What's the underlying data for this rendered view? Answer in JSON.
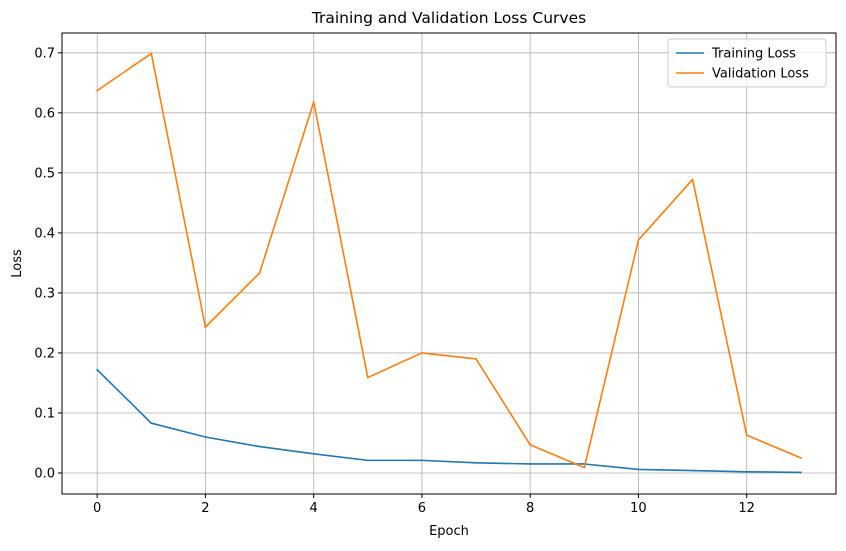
{
  "chart_data": {
    "type": "line",
    "title": "Training and Validation Loss Curves",
    "xlabel": "Epoch",
    "ylabel": "Loss",
    "xlim": [
      -0.65,
      13.65
    ],
    "ylim": [
      -0.035,
      0.733
    ],
    "xticks": [
      0,
      2,
      4,
      6,
      8,
      10,
      12
    ],
    "yticks": [
      0.0,
      0.1,
      0.2,
      0.3,
      0.4,
      0.5,
      0.6,
      0.7
    ],
    "xtick_labels": [
      "0",
      "2",
      "4",
      "6",
      "8",
      "10",
      "12"
    ],
    "ytick_labels": [
      "0.0",
      "0.1",
      "0.2",
      "0.3",
      "0.4",
      "0.5",
      "0.6",
      "0.7"
    ],
    "grid": true,
    "legend_position": "top-right",
    "x": [
      0,
      1,
      2,
      3,
      4,
      5,
      6,
      7,
      8,
      9,
      10,
      11,
      12,
      13
    ],
    "series": [
      {
        "name": "Training Loss",
        "color": "#1f77b4",
        "values": [
          0.172,
          0.083,
          0.06,
          0.044,
          0.032,
          0.021,
          0.021,
          0.017,
          0.015,
          0.015,
          0.006,
          0.004,
          0.002,
          0.001
        ]
      },
      {
        "name": "Validation Loss",
        "color": "#ff7f0e",
        "values": [
          0.637,
          0.699,
          0.243,
          0.333,
          0.618,
          0.159,
          0.2,
          0.19,
          0.047,
          0.009,
          0.388,
          0.489,
          0.063,
          0.025
        ]
      }
    ]
  }
}
